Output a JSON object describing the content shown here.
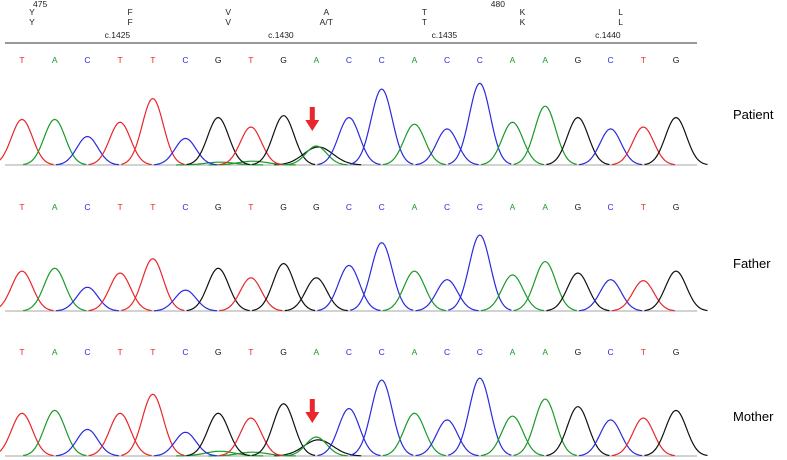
{
  "header": {
    "codon_numbers": [
      {
        "after_col": 0,
        "text": "475"
      },
      {
        "after_col": 14,
        "text": "480"
      }
    ],
    "amino_acids_row1": [
      {
        "col": 1,
        "text": "Y"
      },
      {
        "col": 4,
        "text": "F"
      },
      {
        "col": 7,
        "text": "V"
      },
      {
        "col": 10,
        "text": "A"
      },
      {
        "col": 13,
        "text": "T"
      },
      {
        "col": 16,
        "text": "K"
      },
      {
        "col": 19,
        "text": "L"
      }
    ],
    "amino_acids_row2": [
      {
        "col": 1,
        "text": "Y"
      },
      {
        "col": 4,
        "text": "F"
      },
      {
        "col": 7,
        "text": "V"
      },
      {
        "col": 10,
        "text": "A/T"
      },
      {
        "col": 13,
        "text": "T"
      },
      {
        "col": 16,
        "text": "K"
      },
      {
        "col": 19,
        "text": "L"
      }
    ],
    "positions": [
      {
        "col": 2,
        "text": "c.1425"
      },
      {
        "col": 7,
        "text": "c.1430"
      },
      {
        "col": 12,
        "text": "c.1435"
      },
      {
        "col": 17,
        "text": "c.1440"
      }
    ]
  },
  "colors": {
    "T": "#e8262b",
    "A": "#1a9a2a",
    "C": "#2a2ae0",
    "G": "#111111",
    "arrow": "#e8262b"
  },
  "chart_data": {
    "type": "line",
    "title": "",
    "base_colors": {
      "T": "#e8262b",
      "A": "#1a9a2a",
      "C": "#2a2ae0",
      "G": "#111111"
    },
    "traces": [
      {
        "label": "Patient",
        "calls": [
          "T",
          "A",
          "C",
          "T",
          "T",
          "C",
          "G",
          "T",
          "G",
          "A",
          "C",
          "C",
          "A",
          "C",
          "C",
          "A",
          "A",
          "G",
          "C",
          "T",
          "G"
        ],
        "peaks": [
          0.48,
          0.48,
          0.3,
          0.45,
          0.7,
          0.28,
          0.5,
          0.4,
          0.52,
          0.2,
          0.5,
          0.8,
          0.43,
          0.38,
          0.86,
          0.45,
          0.62,
          0.5,
          0.38,
          0.4,
          0.5
        ],
        "secondary_peaks": [
          {
            "col": 9,
            "base": "G",
            "height": 0.19
          },
          {
            "col": 7,
            "base": "A",
            "height": 0.04
          },
          {
            "col": 6,
            "base": "A",
            "height": 0.03
          }
        ],
        "arrow_col": 9
      },
      {
        "label": "Father",
        "calls": [
          "T",
          "A",
          "C",
          "T",
          "T",
          "C",
          "G",
          "T",
          "G",
          "G",
          "C",
          "C",
          "A",
          "C",
          "C",
          "A",
          "A",
          "G",
          "C",
          "T",
          "G"
        ],
        "peaks": [
          0.42,
          0.45,
          0.25,
          0.4,
          0.55,
          0.22,
          0.45,
          0.35,
          0.5,
          0.35,
          0.48,
          0.72,
          0.42,
          0.33,
          0.8,
          0.38,
          0.52,
          0.4,
          0.33,
          0.32,
          0.42
        ],
        "secondary_peaks": [],
        "arrow_col": null
      },
      {
        "label": "Mother",
        "calls": [
          "T",
          "A",
          "C",
          "T",
          "T",
          "C",
          "G",
          "T",
          "G",
          "A",
          "C",
          "C",
          "A",
          "C",
          "C",
          "A",
          "A",
          "G",
          "C",
          "T",
          "G"
        ],
        "peaks": [
          0.45,
          0.48,
          0.28,
          0.45,
          0.65,
          0.25,
          0.45,
          0.4,
          0.55,
          0.2,
          0.5,
          0.8,
          0.45,
          0.38,
          0.82,
          0.42,
          0.6,
          0.52,
          0.38,
          0.4,
          0.48
        ],
        "secondary_peaks": [
          {
            "col": 9,
            "base": "G",
            "height": 0.17
          },
          {
            "col": 6,
            "base": "A",
            "height": 0.05
          },
          {
            "col": 7,
            "base": "A",
            "height": 0.04
          }
        ],
        "arrow_col": 9
      }
    ]
  }
}
